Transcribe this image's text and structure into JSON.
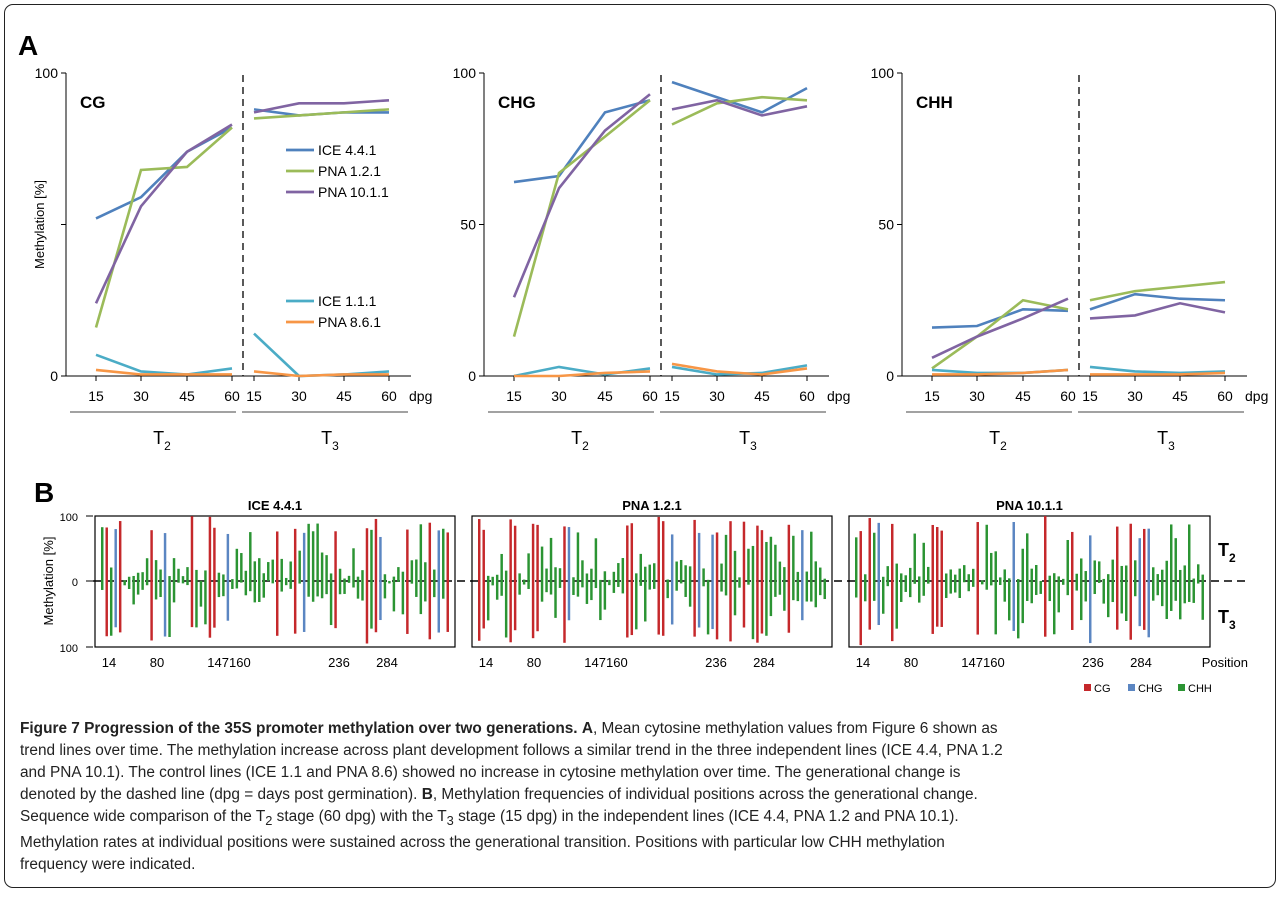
{
  "figure": {
    "panel_a_label": "A",
    "panel_b_label": "B",
    "caption": {
      "l1a": "Figure 7 Progression of the 35S promoter methylation over two generations.",
      "l1b": "A",
      "l1c": ", Mean cytosine methylation values from Figure 6 shown as",
      "l2": "trend lines over time. The methylation increase across plant development follows a similar trend in the three independent lines (ICE 4.4, PNA 1.2",
      "l3": "and PNA 10.1). The control lines (ICE 1.1 and PNA 8.6) showed no increase in cytosine methylation over time. The generational change is",
      "l4a": "denoted by the dashed line (dpg = days post germination).",
      "l4b": "B",
      "l4c": ", Methylation frequencies of individual positions across the generational change.",
      "l5a": "Sequence wide comparison of the T",
      "l5b": "2",
      "l5c": " stage (60 dpg) with the T",
      "l5d": "3",
      "l5e": " stage (15 dpg) in the independent lines (ICE 4.4, PNA 1.2 and PNA 10.1).",
      "l6": "Methylation rates at individual positions were sustained across the generational transition. Positions with particular low CHH methylation",
      "l7": "frequency were indicated."
    }
  },
  "chart_data": [
    {
      "type": "line",
      "panel": "A",
      "title": "CG",
      "ylabel": "Methylation [%]",
      "ylim": [
        0,
        100
      ],
      "yticks": [
        "0",
        "",
        "100"
      ],
      "x": [
        "15",
        "30",
        "45",
        "60"
      ],
      "x_unit": "dpg",
      "groups": [
        "T2",
        "T3"
      ],
      "legend": [
        "ICE 4.4.1",
        "PNA 1.2.1",
        "PNA 10.1.1",
        "ICE 1.1.1",
        "PNA 8.6.1"
      ],
      "series": [
        {
          "name": "ICE 4.4.1",
          "color": "#4f81bd",
          "T2": [
            52,
            59,
            74,
            82
          ],
          "T3": [
            88,
            86,
            87,
            87
          ]
        },
        {
          "name": "PNA 1.2.1",
          "color": "#9bbb59",
          "T2": [
            16,
            68,
            69,
            82
          ],
          "T3": [
            85,
            86,
            87,
            88
          ]
        },
        {
          "name": "PNA 10.1.1",
          "color": "#8064a2",
          "T2": [
            24,
            56,
            74,
            83
          ],
          "T3": [
            87,
            90,
            90,
            91
          ]
        },
        {
          "name": "ICE 1.1.1",
          "color": "#4bacc6",
          "T2": [
            7,
            1.5,
            0.5,
            2.5
          ],
          "T3": [
            14,
            0,
            0.5,
            1.5
          ]
        },
        {
          "name": "PNA 8.6.1",
          "color": "#f79646",
          "T2": [
            2,
            0.5,
            0.5,
            0.5
          ],
          "T3": [
            1.5,
            0,
            0.5,
            0.5
          ]
        }
      ]
    },
    {
      "type": "line",
      "panel": "A",
      "title": "CHG",
      "ylim": [
        0,
        100
      ],
      "yticks": [
        "0",
        "50",
        "100"
      ],
      "x": [
        "15",
        "30",
        "45",
        "60"
      ],
      "x_unit": "dpg",
      "groups": [
        "T2",
        "T3"
      ],
      "series": [
        {
          "name": "ICE 4.4.1",
          "color": "#4f81bd",
          "T2": [
            64,
            66,
            87,
            91
          ],
          "T3": [
            97,
            92,
            87,
            95
          ]
        },
        {
          "name": "PNA 1.2.1",
          "color": "#9bbb59",
          "T2": [
            13,
            67,
            79,
            91
          ],
          "T3": [
            83,
            90,
            92,
            91
          ]
        },
        {
          "name": "PNA 10.1.1",
          "color": "#8064a2",
          "T2": [
            26,
            62,
            81,
            93
          ],
          "T3": [
            88,
            91,
            86,
            89
          ]
        },
        {
          "name": "ICE 1.1.1",
          "color": "#4bacc6",
          "T2": [
            0,
            3,
            0.5,
            2.5
          ],
          "T3": [
            3,
            0.5,
            1,
            3.5
          ]
        },
        {
          "name": "PNA 8.6.1",
          "color": "#f79646",
          "T2": [
            0,
            0,
            1,
            1.5
          ],
          "T3": [
            4,
            1.5,
            0.5,
            2.5
          ]
        }
      ]
    },
    {
      "type": "line",
      "panel": "A",
      "title": "CHH",
      "ylim": [
        0,
        100
      ],
      "yticks": [
        "0",
        "50",
        "100"
      ],
      "x": [
        "15",
        "30",
        "45",
        "60"
      ],
      "x_unit": "dpg",
      "groups": [
        "T2",
        "T3"
      ],
      "series": [
        {
          "name": "ICE 4.4.1",
          "color": "#4f81bd",
          "T2": [
            16,
            16.5,
            22,
            21.5
          ],
          "T3": [
            22,
            27,
            25.5,
            25
          ]
        },
        {
          "name": "PNA 1.2.1",
          "color": "#9bbb59",
          "T2": [
            2.5,
            13,
            25,
            22
          ],
          "T3": [
            25,
            28,
            29.5,
            31
          ]
        },
        {
          "name": "PNA 10.1.1",
          "color": "#8064a2",
          "T2": [
            6,
            13,
            19,
            25.5
          ],
          "T3": [
            19,
            20,
            24,
            21
          ]
        },
        {
          "name": "ICE 1.1.1",
          "color": "#4bacc6",
          "T2": [
            2,
            1,
            1,
            2
          ],
          "T3": [
            3,
            1.5,
            1,
            1.5
          ]
        },
        {
          "name": "PNA 8.6.1",
          "color": "#f79646",
          "T2": [
            0.5,
            0.5,
            1,
            2
          ],
          "T3": [
            0.5,
            0.5,
            0.5,
            1
          ]
        }
      ]
    },
    {
      "type": "bar",
      "panel": "B",
      "titles": [
        "ICE 4.4.1",
        "PNA 1.2.1",
        "PNA 10.1.1"
      ],
      "ylabel": "Methylation [%]",
      "yticks": [
        "100",
        "0",
        "100"
      ],
      "upper_label": "T2",
      "lower_label": "T3",
      "position_ticks": [
        "14",
        "80",
        "147160",
        "236",
        "284"
      ],
      "position_label": "Position",
      "legend": [
        "CG",
        "CHG",
        "CHH"
      ],
      "colors": {
        "CG": "#c5282b",
        "CHG": "#5b86c2",
        "CHH": "#2b9433"
      },
      "note": "per-position bars above (T2) and below (T3) the zero line for each context"
    }
  ]
}
